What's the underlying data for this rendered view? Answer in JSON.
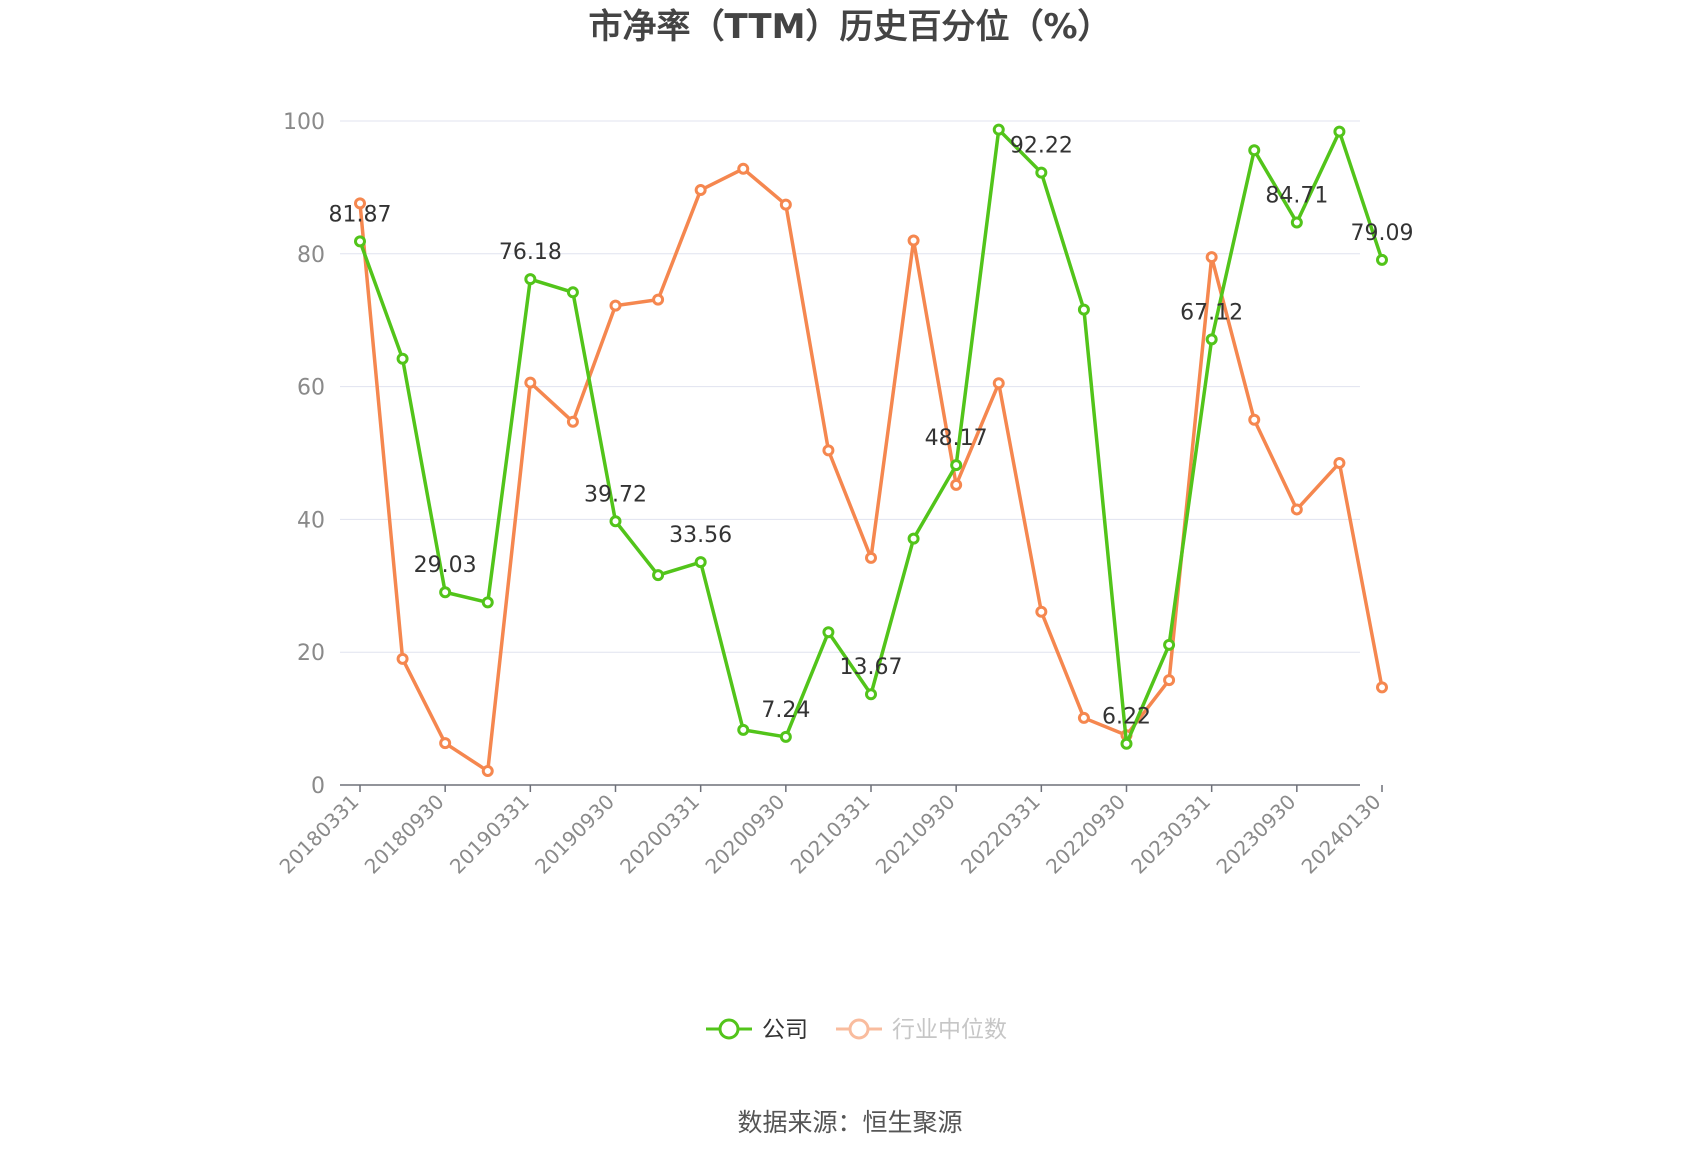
{
  "chart_data": {
    "type": "line",
    "title": "市净率（TTM）历史百分位（%）",
    "xlabel": "",
    "ylabel": "",
    "ylim": [
      0,
      100
    ],
    "yticks": [
      0,
      20,
      40,
      60,
      80,
      100
    ],
    "grid": true,
    "legend_position": "bottom-center",
    "x": [
      "20180331",
      "20180630",
      "20180930",
      "20181231",
      "20190331",
      "20190630",
      "20190930",
      "20191231",
      "20200331",
      "20200630",
      "20200930",
      "20201231",
      "20210331",
      "20210630",
      "20210930",
      "20211231",
      "20220331",
      "20220630",
      "20220930",
      "20221231",
      "20230331",
      "20230630",
      "20230930",
      "20231231",
      "20240130"
    ],
    "x_tick_labels": [
      "20180331",
      "20180930",
      "20190331",
      "20190930",
      "20200331",
      "20200930",
      "20210331",
      "20210930",
      "20220331",
      "20220930",
      "20230331",
      "20230930",
      "20240130"
    ],
    "series": [
      {
        "name": "公司",
        "color": "#52c41a",
        "values": [
          81.87,
          64.2,
          29.03,
          27.5,
          76.18,
          74.2,
          39.72,
          31.6,
          33.56,
          8.3,
          7.24,
          23.0,
          13.67,
          37.1,
          48.17,
          98.7,
          92.22,
          71.6,
          6.22,
          21.1,
          67.12,
          95.6,
          84.71,
          98.4,
          79.09
        ],
        "labels": [
          "81.87",
          "",
          "29.03",
          "",
          "76.18",
          "",
          "39.72",
          "",
          "33.56",
          "",
          "7.24",
          "",
          "13.67",
          "",
          "48.17",
          "",
          "92.22",
          "",
          "6.22",
          "",
          "67.12",
          "",
          "84.71",
          "",
          "79.09"
        ]
      },
      {
        "name": "行业中位数",
        "color": "#f5874f",
        "values": [
          87.6,
          19.0,
          6.3,
          2.1,
          60.6,
          54.7,
          72.2,
          73.1,
          89.6,
          92.8,
          87.4,
          50.4,
          34.2,
          82.0,
          45.2,
          60.5,
          26.1,
          10.1,
          7.5,
          15.8,
          79.5,
          55.0,
          41.5,
          48.5,
          14.7
        ]
      }
    ],
    "source": "数据来源：恒生聚源"
  }
}
